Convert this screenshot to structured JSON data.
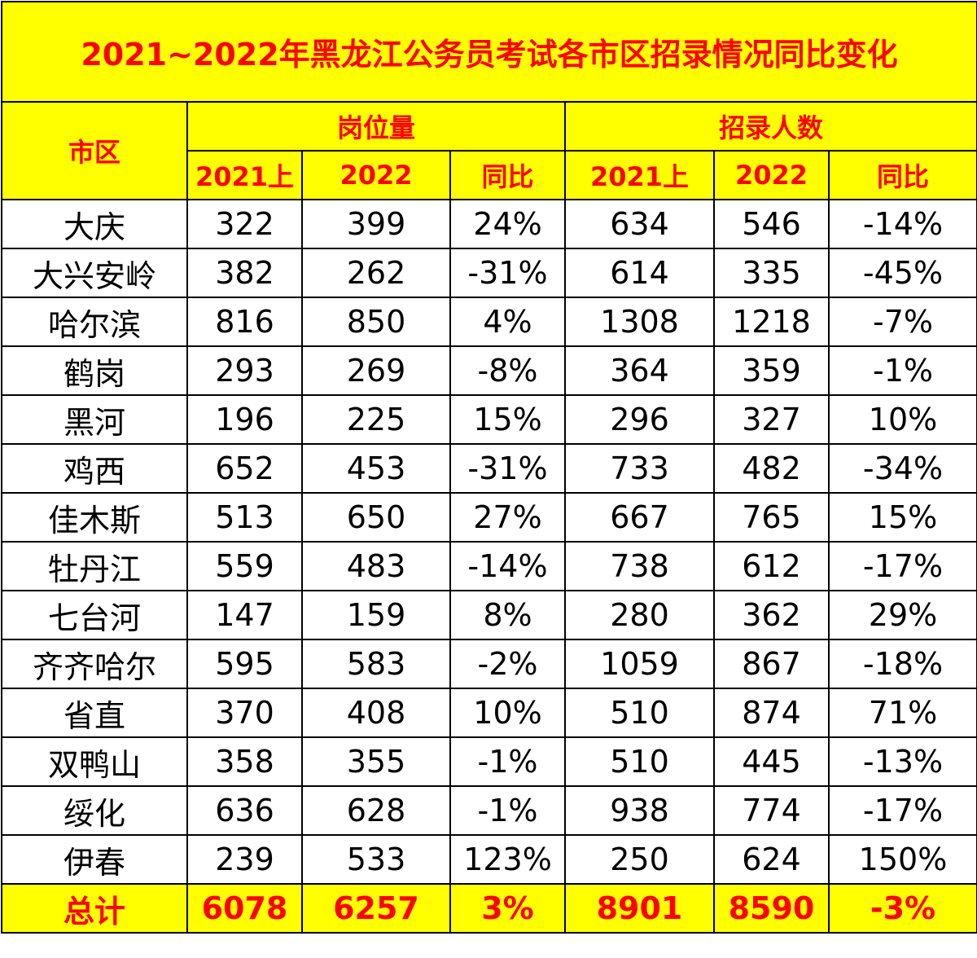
{
  "title": "2021~2022年黑龙江公务员考试各市区招录情况同比变化",
  "colors": {
    "header_bg": "#ffff00",
    "header_text": "#ff0000",
    "body_text": "#000000",
    "border": "#000000"
  },
  "headers": {
    "region": "市区",
    "group_positions": "岗位量",
    "group_hires": "招录人数",
    "sub": [
      "2021上",
      "2022",
      "同比",
      "2021上",
      "2022",
      "同比"
    ]
  },
  "rows": [
    [
      "大庆",
      "322",
      "399",
      "24%",
      "634",
      "546",
      "-14%"
    ],
    [
      "大兴安岭",
      "382",
      "262",
      "-31%",
      "614",
      "335",
      "-45%"
    ],
    [
      "哈尔滨",
      "816",
      "850",
      "4%",
      "1308",
      "1218",
      "-7%"
    ],
    [
      "鹤岗",
      "293",
      "269",
      "-8%",
      "364",
      "359",
      "-1%"
    ],
    [
      "黑河",
      "196",
      "225",
      "15%",
      "296",
      "327",
      "10%"
    ],
    [
      "鸡西",
      "652",
      "453",
      "-31%",
      "733",
      "482",
      "-34%"
    ],
    [
      "佳木斯",
      "513",
      "650",
      "27%",
      "667",
      "765",
      "15%"
    ],
    [
      "牡丹江",
      "559",
      "483",
      "-14%",
      "738",
      "612",
      "-17%"
    ],
    [
      "七台河",
      "147",
      "159",
      "8%",
      "280",
      "362",
      "29%"
    ],
    [
      "齐齐哈尔",
      "595",
      "583",
      "-2%",
      "1059",
      "867",
      "-18%"
    ],
    [
      "省直",
      "370",
      "408",
      "10%",
      "510",
      "874",
      "71%"
    ],
    [
      "双鸭山",
      "358",
      "355",
      "-1%",
      "510",
      "445",
      "-13%"
    ],
    [
      "绥化",
      "636",
      "628",
      "-1%",
      "938",
      "774",
      "-17%"
    ],
    [
      "伊春",
      "239",
      "533",
      "123%",
      "250",
      "624",
      "150%"
    ]
  ],
  "total": [
    "总计",
    "6078",
    "6257",
    "3%",
    "8901",
    "8590",
    "-3%"
  ]
}
